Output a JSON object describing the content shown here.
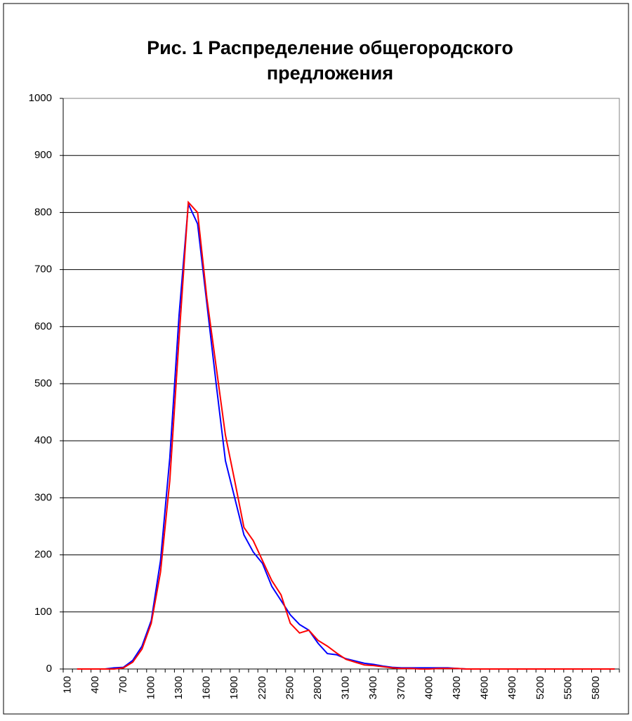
{
  "chart_data": {
    "type": "line",
    "title": "Рис. 1 Распределение общегородского предложения",
    "categories": [
      100,
      null,
      null,
      400,
      null,
      null,
      700,
      null,
      null,
      1000,
      null,
      null,
      1300,
      null,
      null,
      1600,
      null,
      null,
      1900,
      null,
      null,
      2200,
      null,
      null,
      2500,
      null,
      null,
      2800,
      null,
      null,
      3100,
      null,
      null,
      3400,
      null,
      null,
      3700,
      null,
      null,
      4000,
      null,
      null,
      4300,
      null,
      null,
      4600,
      null,
      null,
      4900,
      null,
      null,
      5200,
      null,
      null,
      5500,
      null,
      null,
      5800,
      null,
      null
    ],
    "series": [
      {
        "color": "#0000ff",
        "values": [
          null,
          0,
          0,
          0,
          0,
          2,
          3,
          15,
          40,
          85,
          190,
          370,
          620,
          815,
          780,
          640,
          500,
          365,
          300,
          235,
          205,
          185,
          145,
          120,
          95,
          78,
          68,
          45,
          27,
          25,
          18,
          14,
          10,
          8,
          5,
          3,
          2,
          2,
          2,
          2,
          2,
          2,
          1,
          0,
          0,
          0,
          0,
          0,
          0,
          0,
          0,
          0,
          0,
          0,
          0,
          0,
          0,
          0,
          0,
          0
        ]
      },
      {
        "color": "#ff0000",
        "values": [
          null,
          0,
          0,
          0,
          0,
          0,
          2,
          12,
          35,
          80,
          170,
          330,
          580,
          818,
          800,
          650,
          530,
          410,
          330,
          248,
          225,
          190,
          155,
          130,
          80,
          63,
          68,
          50,
          40,
          28,
          17,
          12,
          7,
          6,
          4,
          2,
          1,
          1,
          0,
          0,
          1,
          1,
          1,
          0,
          0,
          0,
          0,
          0,
          0,
          0,
          0,
          0,
          0,
          0,
          0,
          0,
          0,
          0,
          0,
          0
        ]
      }
    ],
    "ylim": [
      0,
      1000
    ],
    "yticks": [
      0,
      100,
      200,
      300,
      400,
      500,
      600,
      700,
      800,
      900,
      1000
    ],
    "grid": true
  }
}
